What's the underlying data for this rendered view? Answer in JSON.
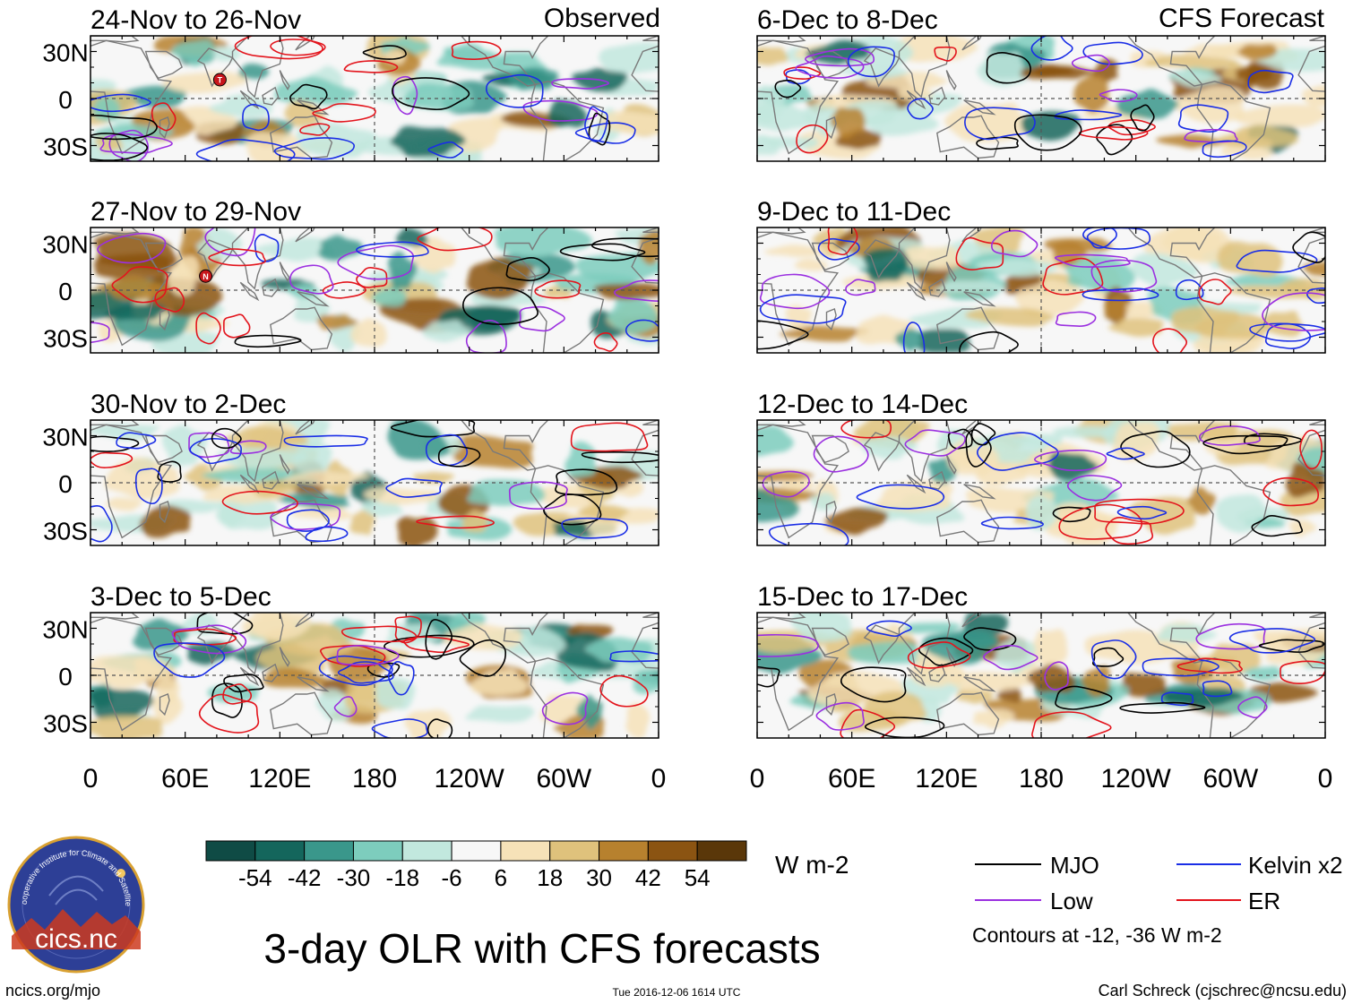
{
  "header": {
    "left_label": "Observed",
    "right_label": "CFS Forecast"
  },
  "panels": {
    "observed": [
      {
        "title": "24-Nov to 26-Nov",
        "markers": [
          {
            "lon": 82,
            "lat": 12,
            "letter": "T"
          }
        ]
      },
      {
        "title": "27-Nov to 29-Nov",
        "markers": [
          {
            "lon": 73,
            "lat": 9,
            "letter": "N"
          }
        ]
      },
      {
        "title": "30-Nov to 2-Dec",
        "markers": []
      },
      {
        "title": "3-Dec to 5-Dec",
        "markers": []
      }
    ],
    "forecast": [
      {
        "title": "6-Dec to 8-Dec",
        "markers": []
      },
      {
        "title": "9-Dec to 11-Dec",
        "markers": []
      },
      {
        "title": "12-Dec to 14-Dec",
        "markers": []
      },
      {
        "title": "15-Dec to 17-Dec",
        "markers": []
      }
    ]
  },
  "lat_labels": [
    "30N",
    "0",
    "30S"
  ],
  "lon_labels": [
    "0",
    "60E",
    "120E",
    "180",
    "120W",
    "60W",
    "0"
  ],
  "colorbar": {
    "unit": "W m-2",
    "tick_labels": [
      "-54",
      "-42",
      "-30",
      "-18",
      "-6",
      "6",
      "18",
      "30",
      "42",
      "54"
    ],
    "colors": [
      "#0f4b45",
      "#14665c",
      "#3a978b",
      "#7dcdbd",
      "#c2e8de",
      "#f7f7f7",
      "#f6e2b8",
      "#dfc27c",
      "#b7812e",
      "#8b5412",
      "#5a3709"
    ]
  },
  "legend": {
    "items": [
      {
        "label": "MJO",
        "color": "#000000"
      },
      {
        "label": "Kelvin x2",
        "color": "#1a2ee6"
      },
      {
        "label": "Low",
        "color": "#9b30e0"
      },
      {
        "label": "ER",
        "color": "#e3141c"
      }
    ],
    "note": "Contours at -12, -36 W m-2"
  },
  "logo": {
    "text": "cics.nc",
    "ring_text": "Cooperative Institute for Climate and Satellites"
  },
  "footer": {
    "main_title": "3-day OLR with CFS forecasts",
    "url": "ncics.org/mjo",
    "timestamp": "Tue 2016-12-06 1614 UTC",
    "author": "Carl Schreck (cjschrec@ncsu.edu)"
  }
}
